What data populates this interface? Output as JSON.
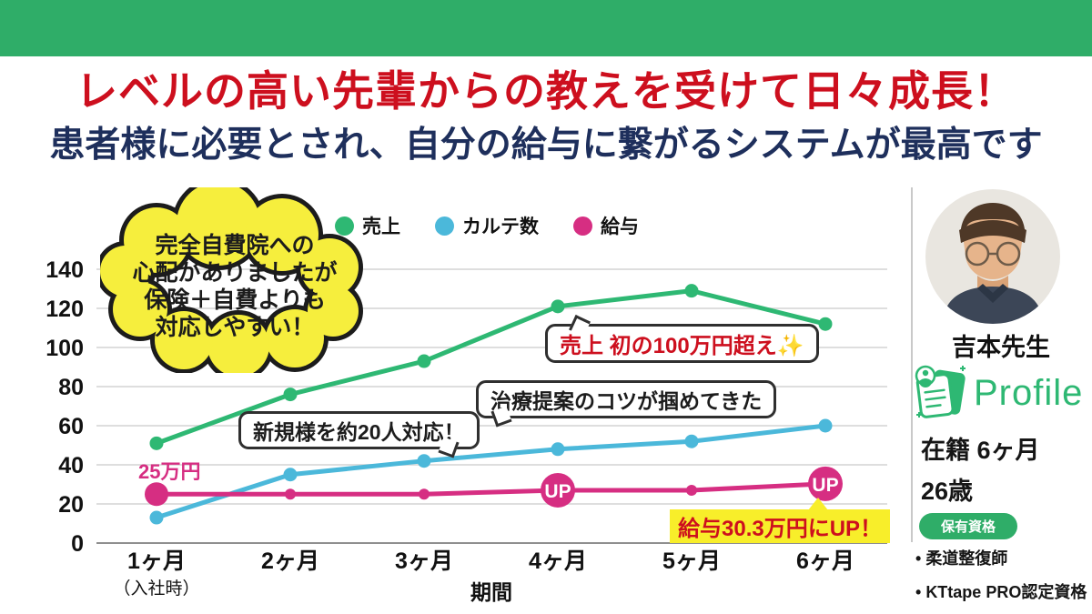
{
  "header": {
    "title": "レベルの高い先輩からの教えを受けて日々成長！",
    "subtitle": "患者様に必要とされ、自分の給与に繋がるシステムが最高です"
  },
  "colors": {
    "banner_green": "#2fad68",
    "accent_red": "#cd0f1e",
    "subtitle_navy": "#1e2f5c",
    "sales_green": "#2eb873",
    "karte_blue": "#4bb8da",
    "salary_pink": "#d62e82",
    "cloud_yellow": "#f6ee3d",
    "highlight_yellow": "#f8ee2a"
  },
  "chart_data": {
    "type": "line",
    "title": "",
    "xlabel": "期間",
    "ylabel": "",
    "ylim": [
      0,
      140
    ],
    "yticks": [
      0,
      20,
      40,
      60,
      80,
      100,
      120,
      140
    ],
    "grid": true,
    "legend_position": "top",
    "categories": [
      "1ヶ月",
      "2ヶ月",
      "3ヶ月",
      "4ヶ月",
      "5ヶ月",
      "6ヶ月"
    ],
    "first_category_note": "（入社時）",
    "series": [
      {
        "name": "売上",
        "color": "#2eb873",
        "values": [
          51,
          76,
          93,
          121,
          129,
          112
        ]
      },
      {
        "name": "カルテ数",
        "color": "#4bb8da",
        "values": [
          13,
          35,
          42,
          48,
          52,
          60
        ]
      },
      {
        "name": "給与",
        "color": "#d62e82",
        "values": [
          25,
          25,
          25,
          27,
          27,
          30.3
        ],
        "big_start_marker": true,
        "up_marker_indices": [
          3,
          5
        ]
      }
    ]
  },
  "annotations": {
    "cloud": [
      "完全自費院への",
      "心配がありましたが",
      "保険＋自費よりも",
      "対応しやすい！"
    ],
    "new_patients": "新規様を約20人対応！",
    "treatment_tip": "治療提案のコツが掴めてきた",
    "sales_milestone": "売上 初の100万円超え",
    "sales_milestone_sparkle": "✨",
    "salary_start": "25万円",
    "salary_up": "給与30.3万円にUP！",
    "up_badge": "UP"
  },
  "profile": {
    "name": "吉本先生",
    "logo_text": "Profile",
    "tenure": "在籍 6ヶ月",
    "age": "26歳",
    "qualifications_title": "保有資格",
    "qualifications": [
      "柔道整復師",
      "KTtape PRO認定資格"
    ]
  }
}
